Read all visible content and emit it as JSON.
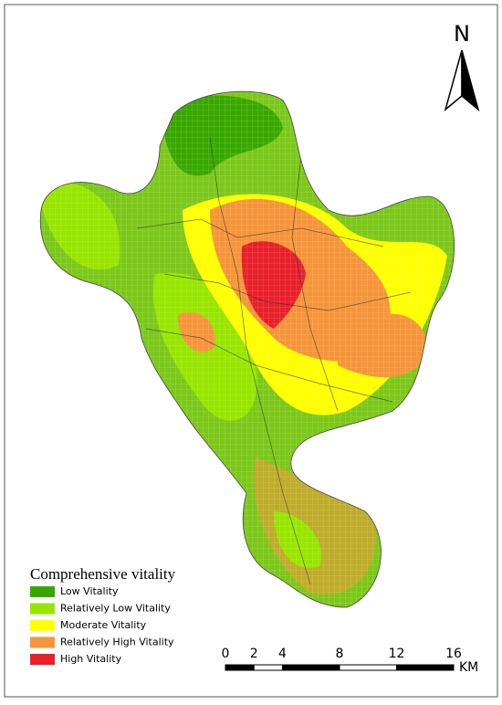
{
  "north_label": "N",
  "legend": {
    "title": "Comprehensive vitality",
    "items": [
      {
        "label": "Low Vitality",
        "color": "#38a800"
      },
      {
        "label": "Relatively Low Vitality",
        "color": "#98e600"
      },
      {
        "label": "Moderate Vitality",
        "color": "#ffff00"
      },
      {
        "label": "Relatively High Vitality",
        "color": "#f5953a"
      },
      {
        "label": "High Vitality",
        "color": "#e8202a"
      }
    ]
  },
  "scale_bar": {
    "ticks": [
      0,
      2,
      4,
      8,
      12,
      16
    ],
    "unit": "KM"
  }
}
